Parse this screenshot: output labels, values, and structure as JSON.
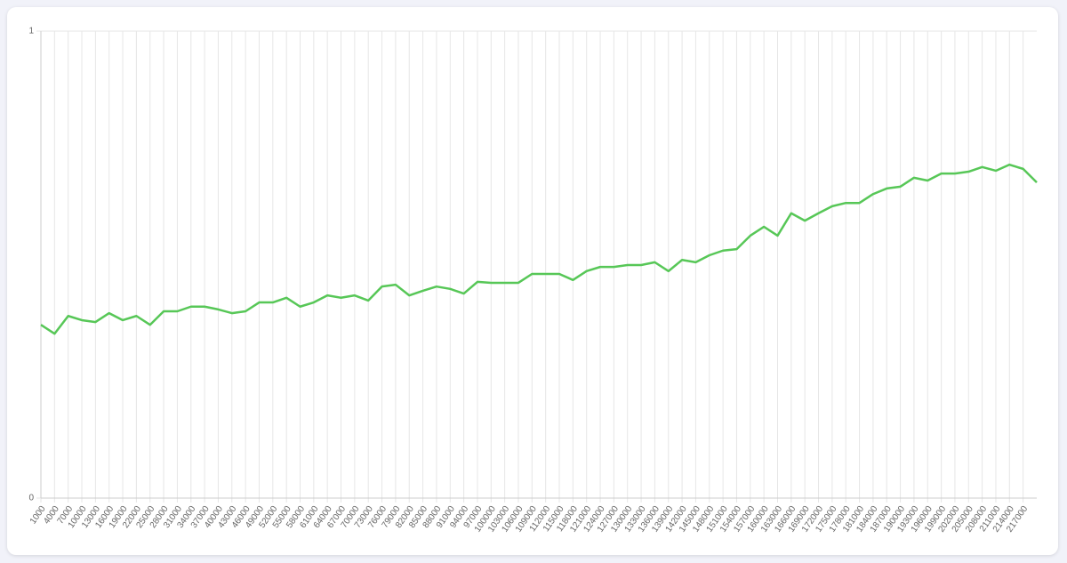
{
  "chart_data": {
    "type": "line",
    "x": [
      1000,
      4000,
      7000,
      10000,
      13000,
      16000,
      19000,
      22000,
      25000,
      28000,
      31000,
      34000,
      37000,
      40000,
      43000,
      46000,
      49000,
      52000,
      55000,
      58000,
      61000,
      64000,
      67000,
      70000,
      73000,
      76000,
      79000,
      82000,
      85000,
      88000,
      91000,
      94000,
      97000,
      100000,
      103000,
      106000,
      109000,
      112000,
      115000,
      118000,
      121000,
      124000,
      127000,
      130000,
      133000,
      136000,
      139000,
      142000,
      145000,
      148000,
      151000,
      154000,
      157000,
      160000,
      163000,
      166000,
      169000,
      172000,
      175000,
      178000,
      181000,
      184000,
      187000,
      190000,
      193000,
      196000,
      199000,
      202000,
      205000,
      208000,
      211000,
      214000,
      217000,
      220000
    ],
    "series": [
      {
        "color": "#57c757",
        "values": [
          0.371,
          0.352,
          0.39,
          0.381,
          0.377,
          0.396,
          0.381,
          0.39,
          0.371,
          0.4,
          0.4,
          0.41,
          0.41,
          0.404,
          0.396,
          0.4,
          0.419,
          0.419,
          0.429,
          0.41,
          0.419,
          0.434,
          0.429,
          0.434,
          0.423,
          0.453,
          0.457,
          0.434,
          0.444,
          0.453,
          0.448,
          0.438,
          0.463,
          0.461,
          0.461,
          0.461,
          0.48,
          0.48,
          0.48,
          0.467,
          0.486,
          0.495,
          0.495,
          0.499,
          0.499,
          0.505,
          0.486,
          0.51,
          0.505,
          0.52,
          0.53,
          0.533,
          0.562,
          0.581,
          0.562,
          0.61,
          0.594,
          0.61,
          0.625,
          0.632,
          0.632,
          0.651,
          0.663,
          0.667,
          0.686,
          0.68,
          0.695,
          0.695,
          0.699,
          0.709,
          0.701,
          0.714,
          0.705,
          0.676
        ]
      }
    ],
    "xlim": [
      1000,
      220000
    ],
    "xticks": [
      1000,
      4000,
      7000,
      10000,
      13000,
      16000,
      19000,
      22000,
      25000,
      28000,
      31000,
      34000,
      37000,
      40000,
      43000,
      46000,
      49000,
      52000,
      55000,
      58000,
      61000,
      64000,
      67000,
      70000,
      73000,
      76000,
      79000,
      82000,
      85000,
      88000,
      91000,
      94000,
      97000,
      100000,
      103000,
      106000,
      109000,
      112000,
      115000,
      118000,
      121000,
      124000,
      127000,
      130000,
      133000,
      136000,
      139000,
      142000,
      145000,
      148000,
      151000,
      154000,
      157000,
      160000,
      163000,
      166000,
      169000,
      172000,
      175000,
      178000,
      181000,
      184000,
      187000,
      190000,
      193000,
      196000,
      199000,
      202000,
      205000,
      208000,
      211000,
      214000,
      217000
    ],
    "ylim": [
      0,
      1
    ],
    "yticks": [
      0,
      1
    ],
    "grid": true
  }
}
